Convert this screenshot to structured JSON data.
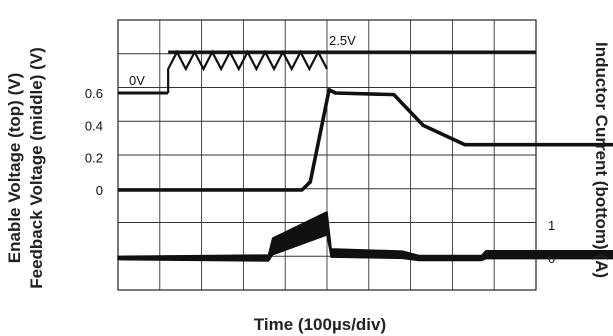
{
  "chart_data": {
    "type": "line",
    "title": "",
    "xlabel": "Time (100µs/div)",
    "ylabels_left": [
      "Enable Voltage (top) (V)",
      "Feedback Voltage (middle) (V)"
    ],
    "ylabel_right": "Inductor Current (bottom) (A)",
    "x_divisions": 10,
    "x_unit": "100µs/div",
    "left_ticks": [
      "0.6",
      "0.4",
      "0.2",
      "0"
    ],
    "left_tick_values": [
      0.6,
      0.4,
      0.2,
      0
    ],
    "right_ticks": [
      "1",
      "0"
    ],
    "right_tick_values": [
      1,
      0
    ],
    "trace_labels": [
      "0V",
      "2.5V"
    ],
    "series": [
      {
        "trace": "enable",
        "x_div": [
          0,
          1.2,
          1.2,
          5.0,
          5.0,
          12.5
        ],
        "y": [
          0,
          0,
          2.5,
          2.5,
          2.5,
          2.5
        ],
        "oscillating": {
          "from_div": 1.2,
          "to_div": 5.0
        }
      },
      {
        "trace": "feedback",
        "x_div": [
          0,
          4.4,
          4.6,
          5.05,
          5.2,
          6.6,
          7.3,
          8.3,
          12.5
        ],
        "y": [
          0,
          0,
          0.05,
          0.62,
          0.6,
          0.59,
          0.4,
          0.28,
          0.28
        ]
      },
      {
        "trace": "inductor",
        "x_div": [
          0,
          3.6,
          3.7,
          5.0,
          5.1,
          6.8,
          7.2,
          8.7,
          8.8,
          12.5
        ],
        "y": [
          0,
          0,
          0.35,
          1.05,
          0.15,
          0.1,
          0.0,
          0.0,
          0.1,
          0.1
        ],
        "band_width_A": [
          0,
          0.08,
          0.4,
          0.6,
          0.15,
          0.12,
          0.05,
          0.05,
          0.14,
          0.14
        ]
      }
    ],
    "grid": true
  }
}
